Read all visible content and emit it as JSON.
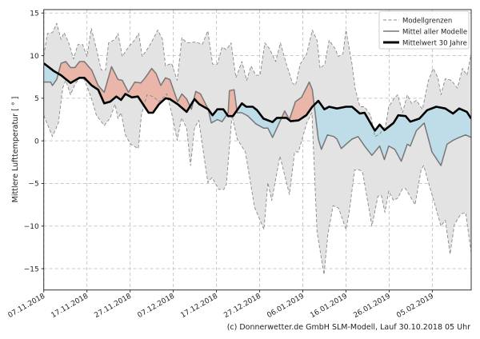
{
  "chart_data": {
    "type": "line",
    "title": "",
    "xlabel": "",
    "ylabel": "Mittlere Lufttemperatur [ ° ]",
    "x_unit": "days since 07.11.2018",
    "xlim": [
      0,
      99
    ],
    "ylim": [
      -17.5,
      15.4
    ],
    "grid": true,
    "legend_position": "top-right",
    "x_ticks": [
      {
        "day": 0,
        "label": "07.11.2018"
      },
      {
        "day": 10,
        "label": "17.11.2018"
      },
      {
        "day": 20,
        "label": "27.11.2018"
      },
      {
        "day": 30,
        "label": "07.12.2018"
      },
      {
        "day": 40,
        "label": "17.12.2018"
      },
      {
        "day": 50,
        "label": "27.12.2018"
      },
      {
        "day": 60,
        "label": "06.01.2019"
      },
      {
        "day": 70,
        "label": "16.01.2019"
      },
      {
        "day": 80,
        "label": "26.01.2019"
      },
      {
        "day": 90,
        "label": "05.02.2019"
      }
    ],
    "y_ticks": [
      {
        "value": 15,
        "label": "15"
      },
      {
        "value": 10,
        "label": "10"
      },
      {
        "value": 5,
        "label": "5"
      },
      {
        "value": 0,
        "label": "0"
      },
      {
        "value": -5,
        "label": "−5"
      },
      {
        "value": -10,
        "label": "−10"
      },
      {
        "value": -15,
        "label": "−15"
      }
    ],
    "legend": [
      {
        "key": "bounds",
        "label": "Modellgrenzen"
      },
      {
        "key": "mean",
        "label": "Mittel aller Modelle"
      },
      {
        "key": "climate",
        "label": "Mittelwert 30 Jahre"
      }
    ],
    "series": {
      "upper": [
        [
          0,
          10
        ],
        [
          0.85,
          12.6
        ],
        [
          2,
          12.7
        ],
        [
          3,
          13.8
        ],
        [
          4,
          11.9
        ],
        [
          4.7,
          12.7
        ],
        [
          5.8,
          11.5
        ],
        [
          6.9,
          9.6
        ],
        [
          7.9,
          11.3
        ],
        [
          9,
          11.3
        ],
        [
          10,
          9.9
        ],
        [
          11,
          13.2
        ],
        [
          12.2,
          10.8
        ],
        [
          13.3,
          8.3
        ],
        [
          14.3,
          8.3
        ],
        [
          15,
          11.5
        ],
        [
          16.5,
          11.9
        ],
        [
          17.2,
          12.6
        ],
        [
          18.2,
          9.9
        ],
        [
          19.6,
          11
        ],
        [
          21,
          11.8
        ],
        [
          22,
          12.6
        ],
        [
          22.8,
          9.9
        ],
        [
          24.3,
          11
        ],
        [
          25.3,
          11.9
        ],
        [
          26.4,
          13
        ],
        [
          27.5,
          11.9
        ],
        [
          28.2,
          8.8
        ],
        [
          29.6,
          9.1
        ],
        [
          30.9,
          7.1
        ],
        [
          32,
          12.1
        ],
        [
          33.1,
          11.5
        ],
        [
          35.2,
          11.6
        ],
        [
          36.7,
          11.3
        ],
        [
          38,
          12.9
        ],
        [
          39.1,
          9
        ],
        [
          40.2,
          9
        ],
        [
          41.3,
          11
        ],
        [
          42.3,
          10.7
        ],
        [
          43.4,
          11.5
        ],
        [
          44.5,
          7.4
        ],
        [
          45.9,
          9.3
        ],
        [
          47,
          7.1
        ],
        [
          48,
          8.8
        ],
        [
          49.1,
          7.7
        ],
        [
          50.1,
          7.7
        ],
        [
          51.2,
          11.5
        ],
        [
          52.3,
          10.8
        ],
        [
          53.7,
          9.3
        ],
        [
          54.8,
          11.5
        ],
        [
          56.2,
          9
        ],
        [
          57.6,
          6.8
        ],
        [
          58.3,
          6.5
        ],
        [
          59.4,
          9
        ],
        [
          60.9,
          10.2
        ],
        [
          62.2,
          13
        ],
        [
          63.3,
          11.8
        ],
        [
          64,
          8.5
        ],
        [
          65.1,
          9
        ],
        [
          66.1,
          11.8
        ],
        [
          67.5,
          10.8
        ],
        [
          68.2,
          9.9
        ],
        [
          69.3,
          10.2
        ],
        [
          70,
          13
        ],
        [
          71.4,
          9
        ],
        [
          72.1,
          6.2
        ],
        [
          73.2,
          4
        ],
        [
          74.3,
          4
        ],
        [
          75.7,
          3
        ],
        [
          76.7,
          0.5
        ],
        [
          77.8,
          0.8
        ],
        [
          79.2,
          1.8
        ],
        [
          79.9,
          4
        ],
        [
          81.3,
          5.1
        ],
        [
          82,
          5.4
        ],
        [
          83.1,
          3.3
        ],
        [
          84.2,
          5.4
        ],
        [
          85.2,
          4.4
        ],
        [
          86.3,
          4.75
        ],
        [
          87.7,
          3.7
        ],
        [
          89.1,
          7.1
        ],
        [
          90.2,
          8.5
        ],
        [
          91.3,
          7.4
        ],
        [
          92,
          5.4
        ],
        [
          93,
          7.3
        ],
        [
          94.4,
          7.1
        ],
        [
          95.8,
          6.2
        ],
        [
          97,
          8.5
        ],
        [
          98,
          7.7
        ],
        [
          99,
          10.2
        ]
      ],
      "lower": [
        [
          0,
          3
        ],
        [
          1.2,
          1.5
        ],
        [
          2,
          0.5
        ],
        [
          3.4,
          2.1
        ],
        [
          4.4,
          6.2
        ],
        [
          5.1,
          7.1
        ],
        [
          6.2,
          5.4
        ],
        [
          7.2,
          6.6
        ],
        [
          8.3,
          7.4
        ],
        [
          9.4,
          7.2
        ],
        [
          11.1,
          4.9
        ],
        [
          12.2,
          3
        ],
        [
          14,
          1.8
        ],
        [
          15.4,
          2.7
        ],
        [
          16.5,
          4.3
        ],
        [
          17.2,
          2.6
        ],
        [
          17.9,
          3.3
        ],
        [
          18.9,
          0.7
        ],
        [
          20.1,
          -0.4
        ],
        [
          21.9,
          -0.9
        ],
        [
          22.6,
          3
        ],
        [
          23.9,
          5.4
        ],
        [
          25.3,
          5.2
        ],
        [
          26.7,
          4.6
        ],
        [
          28.5,
          5.5
        ],
        [
          29.6,
          3.3
        ],
        [
          30.9,
          0.06
        ],
        [
          31.9,
          2.7
        ],
        [
          33.1,
          1.5
        ],
        [
          34,
          -2.9
        ],
        [
          34.9,
          1.5
        ],
        [
          35.9,
          2.4
        ],
        [
          38,
          -4.9
        ],
        [
          39,
          -4.3
        ],
        [
          40.5,
          -5.7
        ],
        [
          41.7,
          -5.7
        ],
        [
          42.3,
          -5.1
        ],
        [
          43.6,
          3
        ],
        [
          44.8,
          0.2
        ],
        [
          46.7,
          -1.3
        ],
        [
          48.8,
          -7.75
        ],
        [
          51,
          -10.4
        ],
        [
          51.9,
          -4.9
        ],
        [
          52.8,
          -7
        ],
        [
          54.7,
          -1.8
        ],
        [
          56.9,
          -6.3
        ],
        [
          58.1,
          -1.3
        ],
        [
          59,
          -1.3
        ],
        [
          60.9,
          2.1
        ],
        [
          62.1,
          3.3
        ],
        [
          63.3,
          -10.7
        ],
        [
          64.9,
          -15.7
        ],
        [
          65.8,
          -11
        ],
        [
          67,
          -7.6
        ],
        [
          68.3,
          -7.9
        ],
        [
          70,
          -10.4
        ],
        [
          70.7,
          -8.5
        ],
        [
          72,
          -3.4
        ],
        [
          73.2,
          -3.4
        ],
        [
          73.9,
          -3.8
        ],
        [
          76,
          -10
        ],
        [
          77.4,
          -6.5
        ],
        [
          78.2,
          -6.4
        ],
        [
          79,
          -8.4
        ],
        [
          79.9,
          -5.9
        ],
        [
          81,
          -7
        ],
        [
          82,
          -6.7
        ],
        [
          83.1,
          -5.6
        ],
        [
          83.8,
          -5.6
        ],
        [
          86,
          -7.5
        ],
        [
          87.4,
          -3.4
        ],
        [
          88,
          -2.9
        ],
        [
          89.1,
          -4.9
        ],
        [
          90.6,
          -7.5
        ],
        [
          92,
          -10
        ],
        [
          93,
          -9.3
        ],
        [
          94.1,
          -13.3
        ],
        [
          95.1,
          -9.8
        ],
        [
          96.6,
          -8.6
        ],
        [
          97.7,
          -8.4
        ],
        [
          99,
          -13.1
        ]
      ],
      "mean": [
        [
          0,
          6.9
        ],
        [
          1.6,
          6.9
        ],
        [
          2,
          6.5
        ],
        [
          3,
          7.2
        ],
        [
          4,
          9.1
        ],
        [
          5.1,
          9.3
        ],
        [
          6.2,
          8.6
        ],
        [
          7.2,
          8.6
        ],
        [
          8.3,
          9.3
        ],
        [
          9.4,
          9.3
        ],
        [
          11.1,
          8.3
        ],
        [
          12.6,
          6.5
        ],
        [
          14,
          5.7
        ],
        [
          15.7,
          8.7
        ],
        [
          17.2,
          7.2
        ],
        [
          18.2,
          7.1
        ],
        [
          19.6,
          5.7
        ],
        [
          21.1,
          6.9
        ],
        [
          22.5,
          6.8
        ],
        [
          23.5,
          7.4
        ],
        [
          25,
          8.5
        ],
        [
          26,
          7.9
        ],
        [
          27.1,
          6.5
        ],
        [
          28.2,
          7.4
        ],
        [
          29.2,
          7.2
        ],
        [
          31,
          4.6
        ],
        [
          32,
          5.5
        ],
        [
          33.1,
          4.9
        ],
        [
          34.2,
          3.7
        ],
        [
          35.2,
          5.8
        ],
        [
          36.3,
          5.5
        ],
        [
          38.1,
          3.7
        ],
        [
          38.8,
          2.1
        ],
        [
          40.2,
          2.5
        ],
        [
          41.3,
          2.25
        ],
        [
          42.7,
          3.3
        ],
        [
          43,
          5.9
        ],
        [
          44.1,
          6
        ],
        [
          44.8,
          3.3
        ],
        [
          45.9,
          3.3
        ],
        [
          47.3,
          2.9
        ],
        [
          49.1,
          2
        ],
        [
          50.9,
          1.5
        ],
        [
          51.9,
          1.5
        ],
        [
          53,
          0.4
        ],
        [
          54,
          1.5
        ],
        [
          55.8,
          3.5
        ],
        [
          56.9,
          2.5
        ],
        [
          58.3,
          4.6
        ],
        [
          59.7,
          5.1
        ],
        [
          61.5,
          6.9
        ],
        [
          62.2,
          6
        ],
        [
          63.6,
          0.2
        ],
        [
          64.3,
          -1
        ],
        [
          65.7,
          0.7
        ],
        [
          67.2,
          0.5
        ],
        [
          67.9,
          0.2
        ],
        [
          68.9,
          -0.9
        ],
        [
          70,
          -0.4
        ],
        [
          71.4,
          0.2
        ],
        [
          72.8,
          0.5
        ],
        [
          74.3,
          -0.6
        ],
        [
          76,
          -1.7
        ],
        [
          77.8,
          -0.6
        ],
        [
          78.9,
          -2.2
        ],
        [
          79.9,
          -0.6
        ],
        [
          81.3,
          -1
        ],
        [
          82.8,
          -2.4
        ],
        [
          84.2,
          -0.4
        ],
        [
          84.9,
          -0.6
        ],
        [
          86.3,
          1.2
        ],
        [
          88.1,
          2.1
        ],
        [
          89.9,
          -1.3
        ],
        [
          92,
          -2.9
        ],
        [
          93.4,
          -0.4
        ],
        [
          94.8,
          0.06
        ],
        [
          96.2,
          0.4
        ],
        [
          97.7,
          0.7
        ],
        [
          99,
          0.4
        ]
      ],
      "climate": [
        [
          0,
          9.1
        ],
        [
          2.3,
          8.2
        ],
        [
          4,
          7.7
        ],
        [
          6.2,
          6.8
        ],
        [
          8.3,
          7.4
        ],
        [
          9.4,
          7.4
        ],
        [
          11.1,
          6.5
        ],
        [
          12.6,
          6
        ],
        [
          14,
          4.4
        ],
        [
          15.4,
          4.6
        ],
        [
          16.8,
          5.2
        ],
        [
          17.9,
          4.8
        ],
        [
          18.9,
          5.5
        ],
        [
          20.4,
          5.1
        ],
        [
          21.8,
          5.2
        ],
        [
          24.3,
          3.3
        ],
        [
          25.3,
          3.3
        ],
        [
          26.7,
          4.3
        ],
        [
          28.2,
          5
        ],
        [
          29.2,
          4.9
        ],
        [
          31,
          4.3
        ],
        [
          33.1,
          3.4
        ],
        [
          34.9,
          4.9
        ],
        [
          36,
          4.3
        ],
        [
          38.1,
          3.7
        ],
        [
          39.1,
          3
        ],
        [
          40.2,
          3.7
        ],
        [
          41.6,
          3.7
        ],
        [
          42.7,
          2.9
        ],
        [
          43.8,
          2.9
        ],
        [
          45.9,
          4.4
        ],
        [
          46.9,
          4
        ],
        [
          48.4,
          4
        ],
        [
          49.4,
          3.6
        ],
        [
          50.9,
          2.6
        ],
        [
          53,
          2.2
        ],
        [
          54,
          2.7
        ],
        [
          56.2,
          2.7
        ],
        [
          57.2,
          2.3
        ],
        [
          59,
          2.4
        ],
        [
          60.8,
          3
        ],
        [
          62.2,
          4
        ],
        [
          63.6,
          4.7
        ],
        [
          65,
          3.7
        ],
        [
          66.1,
          4
        ],
        [
          67.9,
          3.8
        ],
        [
          70,
          4
        ],
        [
          71.4,
          4
        ],
        [
          73.2,
          3.2
        ],
        [
          74.3,
          3.3
        ],
        [
          76.7,
          1.2
        ],
        [
          77.8,
          1.9
        ],
        [
          78.9,
          1.25
        ],
        [
          81,
          2.1
        ],
        [
          82.1,
          3
        ],
        [
          83.8,
          2.9
        ],
        [
          84.9,
          2.25
        ],
        [
          87,
          2.6
        ],
        [
          88.8,
          3.6
        ],
        [
          90.9,
          4
        ],
        [
          93,
          3.8
        ],
        [
          94.8,
          3.2
        ],
        [
          96.2,
          3.8
        ],
        [
          98,
          3.4
        ],
        [
          99,
          2.6
        ]
      ]
    },
    "colors": {
      "bounds_fill": "#e3e3e3",
      "bounds_line": "#888888",
      "mean_line": "#777777",
      "climate_line": "#000000",
      "warm_fill": "#e9b0a2",
      "cold_fill": "#bcdce9"
    }
  },
  "footer": "(c) Donnerwetter.de GmbH SLM-Modell, Lauf 30.10.2018 05 Uhr"
}
